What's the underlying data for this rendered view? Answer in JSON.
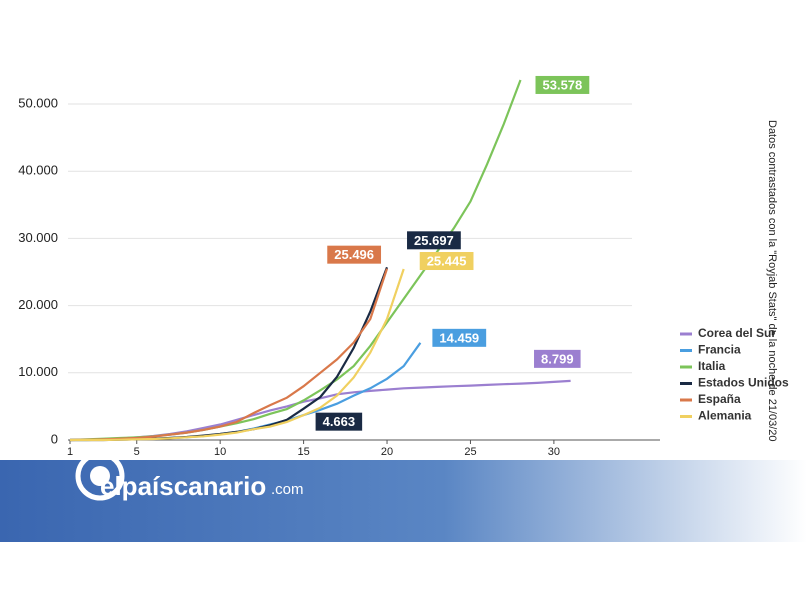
{
  "chart_data": {
    "type": "line",
    "annotation": "Datos contrastados con la \"Royjab Stats\" de la noche de 21/03/20",
    "x": [
      1,
      2,
      3,
      4,
      5,
      6,
      7,
      8,
      9,
      10,
      11,
      12,
      13,
      14,
      15,
      16,
      17,
      18,
      19,
      20,
      21,
      22,
      23,
      24,
      25,
      26,
      27,
      28,
      29,
      30,
      31
    ],
    "xlim": [
      1,
      36
    ],
    "xticks": [
      1,
      5,
      10,
      15,
      20,
      25,
      30
    ],
    "ylim": [
      0,
      55000
    ],
    "yticks": [
      0,
      {
        "value": 10000,
        "label": "10.000"
      },
      {
        "value": 20000,
        "label": "20.000"
      },
      {
        "value": 30000,
        "label": "30.000"
      },
      {
        "value": 40000,
        "label": "40.000"
      },
      {
        "value": 50000,
        "label": "50.000"
      }
    ],
    "grid": true,
    "legend": "right",
    "series": [
      {
        "name": "Corea del Sur",
        "color": "#9b7fd0",
        "values": [
          0,
          50,
          100,
          200,
          400,
          600,
          900,
          1300,
          1800,
          2300,
          3000,
          3700,
          4400,
          5000,
          5700,
          6200,
          6800,
          7100,
          7300,
          7500,
          7700,
          7800,
          7900,
          8000,
          8100,
          8200,
          8300,
          8400,
          8500,
          8650,
          8799
        ],
        "value_labels": [
          null,
          null,
          null,
          null,
          null,
          null,
          null,
          null,
          null,
          null,
          null,
          null,
          null,
          null,
          null,
          null,
          null,
          null,
          null,
          null,
          null,
          null,
          null,
          null,
          null,
          null,
          null,
          null,
          null,
          null,
          "8.799"
        ]
      },
      {
        "name": "Francia",
        "color": "#4a9ee0",
        "values": [
          0,
          0,
          50,
          100,
          150,
          200,
          300,
          400,
          600,
          900,
          1200,
          1700,
          2300,
          2900,
          3700,
          4500,
          5400,
          6600,
          7700,
          9100,
          11000,
          14459,
          null,
          null,
          null,
          null,
          null,
          null,
          null,
          null,
          null
        ],
        "value_labels": [
          null,
          null,
          null,
          null,
          null,
          null,
          null,
          null,
          null,
          null,
          null,
          null,
          null,
          null,
          null,
          null,
          null,
          null,
          null,
          null,
          null,
          "14.459",
          null,
          null,
          null,
          null,
          null,
          null,
          null,
          null,
          null
        ]
      },
      {
        "name": "Italia",
        "color": "#7cc45a",
        "values": [
          0,
          100,
          200,
          300,
          400,
          550,
          800,
          1100,
          1500,
          2000,
          2500,
          3100,
          3900,
          4600,
          5900,
          7400,
          9000,
          11000,
          14000,
          17500,
          21000,
          24500,
          28000,
          31500,
          35500,
          41035,
          47021,
          53578,
          null,
          null,
          null
        ],
        "value_labels": [
          null,
          null,
          null,
          null,
          null,
          null,
          null,
          null,
          null,
          null,
          null,
          null,
          null,
          null,
          null,
          null,
          null,
          null,
          null,
          null,
          null,
          null,
          null,
          null,
          null,
          null,
          null,
          "53.578",
          null,
          null,
          null
        ]
      },
      {
        "name": "Estados Unidos",
        "color": "#1a2a44",
        "values": [
          0,
          0,
          0,
          50,
          100,
          200,
          300,
          450,
          650,
          900,
          1200,
          1600,
          2200,
          3000,
          4663,
          6400,
          9400,
          13700,
          19100,
          25697,
          null,
          null,
          null,
          null,
          null,
          null,
          null,
          null,
          null,
          null,
          null
        ],
        "value_labels": [
          null,
          null,
          null,
          null,
          null,
          null,
          null,
          null,
          null,
          null,
          null,
          null,
          null,
          null,
          "4.663",
          null,
          null,
          null,
          null,
          "25.697",
          null,
          null,
          null,
          null,
          null,
          null,
          null,
          null,
          null,
          null,
          null
        ]
      },
      {
        "name": "España",
        "color": "#d9784a",
        "values": [
          0,
          50,
          100,
          200,
          300,
          500,
          800,
          1100,
          1500,
          2000,
          2700,
          4000,
          5200,
          6300,
          8000,
          10000,
          12000,
          14500,
          18000,
          25496,
          null,
          null,
          null,
          null,
          null,
          null,
          null,
          null,
          null,
          null,
          null
        ],
        "value_labels": [
          null,
          null,
          null,
          null,
          null,
          null,
          null,
          null,
          null,
          null,
          null,
          null,
          null,
          null,
          null,
          null,
          null,
          null,
          null,
          "25.496",
          null,
          null,
          null,
          null,
          null,
          null,
          null,
          null,
          null,
          null,
          null
        ]
      },
      {
        "name": "Alemania",
        "color": "#f0d060",
        "values": [
          0,
          0,
          0,
          50,
          100,
          150,
          250,
          400,
          550,
          800,
          1100,
          1600,
          2000,
          2700,
          3700,
          4800,
          6600,
          9300,
          13000,
          18000,
          25445,
          null,
          null,
          null,
          null,
          null,
          null,
          null,
          null,
          null,
          null
        ],
        "value_labels": [
          null,
          null,
          null,
          null,
          null,
          null,
          null,
          null,
          null,
          null,
          null,
          null,
          null,
          null,
          null,
          null,
          null,
          null,
          null,
          null,
          "25.445",
          null,
          null,
          null,
          null,
          null,
          null,
          null,
          null,
          null,
          null
        ]
      }
    ]
  },
  "banner": {
    "logo_text": "elpaíscanario",
    "logo_suffix": ".com"
  }
}
